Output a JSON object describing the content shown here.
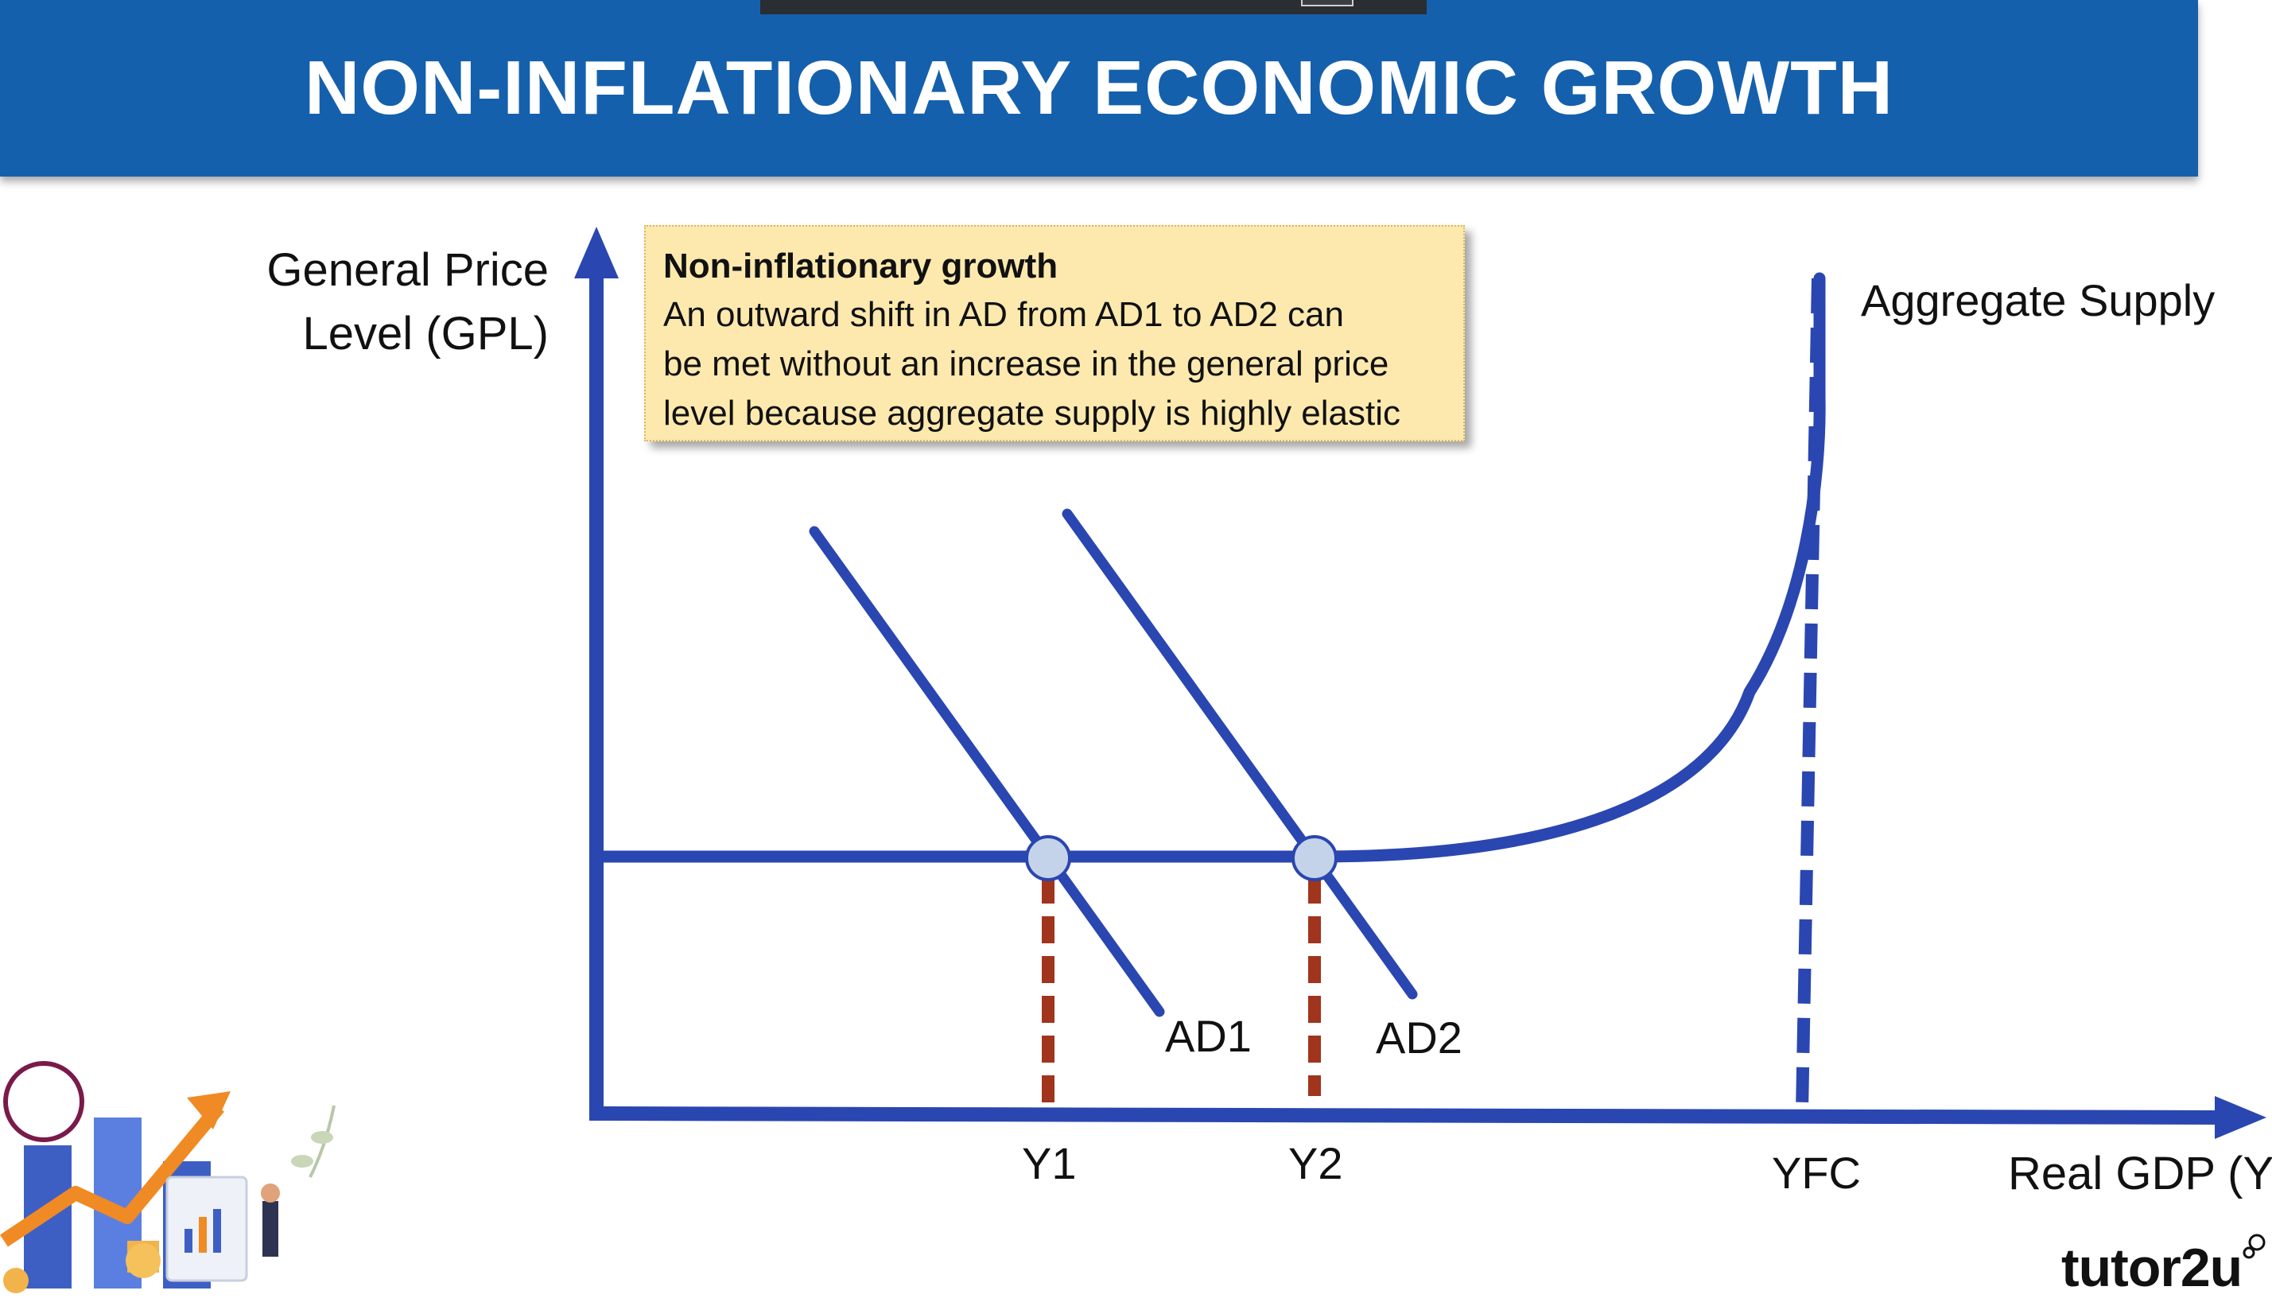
{
  "title": "NON-INFLATIONARY ECONOMIC GROWTH",
  "callout": {
    "heading": "Non-inflationary growth",
    "body_lines": [
      "An outward shift in AD from AD1 to AD2 can",
      "be met without an increase in the general price",
      "level because aggregate supply is highly elastic"
    ]
  },
  "axes": {
    "y_label_lines": [
      "General Price",
      "Level (GPL)"
    ],
    "x_label": "Real GDP (Y)"
  },
  "curves": {
    "as_label": "Aggregate Supply",
    "ad1_label": "AD1",
    "ad2_label": "AD2"
  },
  "x_ticks": [
    "Y1",
    "Y2",
    "YFC"
  ],
  "logo": "tutor2u",
  "colors": {
    "banner": "#1560ac",
    "curve": "#2a46b0",
    "dashed_output": "#a0341c",
    "equilibrium_point": "#c5d3ea",
    "callout_bg": "#fde9ae"
  }
}
